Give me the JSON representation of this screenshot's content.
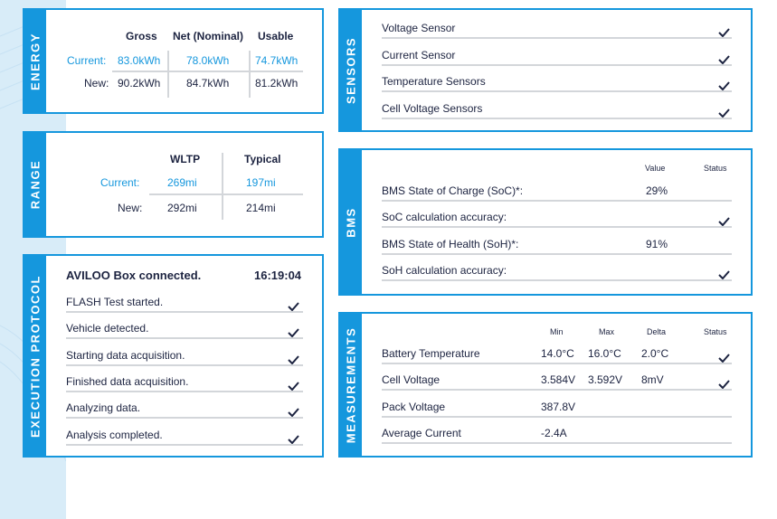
{
  "colors": {
    "accent": "#1597dd",
    "text": "#1c2340",
    "divider": "#d3d6da",
    "background_stripe": "#d8ecf8"
  },
  "energy": {
    "tab_label": "ENERGY",
    "headers": [
      "Gross",
      "Net (Nominal)",
      "Usable"
    ],
    "rows": [
      {
        "label": "Current:",
        "values": [
          "83.0kWh",
          "78.0kWh",
          "74.7kWh"
        ]
      },
      {
        "label": "New:",
        "values": [
          "90.2kWh",
          "84.7kWh",
          "81.2kWh"
        ]
      }
    ]
  },
  "range": {
    "tab_label": "RANGE",
    "headers": [
      "WLTP",
      "Typical"
    ],
    "rows": [
      {
        "label": "Current:",
        "values": [
          "269mi",
          "197mi"
        ]
      },
      {
        "label": "New:",
        "values": [
          "292mi",
          "214mi"
        ]
      }
    ]
  },
  "execution": {
    "tab_label": "EXECUTION PROTOCOL",
    "title": "AVILOO Box connected.",
    "time": "16:19:04",
    "steps": [
      "FLASH Test started.",
      "Vehicle detected.",
      "Starting data acquisition.",
      "Finished data acquisition.",
      "Analyzing data.",
      "Analysis completed."
    ]
  },
  "sensors": {
    "tab_label": "SENSORS",
    "items": [
      "Voltage Sensor",
      "Current Sensor",
      "Temperature Sensors",
      "Cell Voltage Sensors"
    ]
  },
  "bms": {
    "tab_label": "BMS",
    "headers": [
      "Value",
      "Status"
    ],
    "rows": [
      {
        "label": "BMS State of Charge (SoC)*:",
        "value": "29%",
        "check": false
      },
      {
        "label": "SoC calculation accuracy:",
        "value": "",
        "check": true
      },
      {
        "label": "BMS State of Health (SoH)*:",
        "value": "91%",
        "check": false
      },
      {
        "label": "SoH calculation accuracy:",
        "value": "",
        "check": true
      }
    ]
  },
  "measurements": {
    "tab_label": "MEASUREMENTS",
    "headers": [
      "Min",
      "Max",
      "Delta",
      "Status"
    ],
    "rows": [
      {
        "label": "Battery Temperature",
        "min": "14.0°C",
        "max": "16.0°C",
        "delta": "2.0°C",
        "check": true
      },
      {
        "label": "Cell Voltage",
        "min": "3.584V",
        "max": "3.592V",
        "delta": "8mV",
        "check": true
      },
      {
        "label": "Pack Voltage",
        "min": "387.8V",
        "max": "",
        "delta": "",
        "check": false
      },
      {
        "label": "Average Current",
        "min": "-2.4A",
        "max": "",
        "delta": "",
        "check": false
      }
    ]
  }
}
